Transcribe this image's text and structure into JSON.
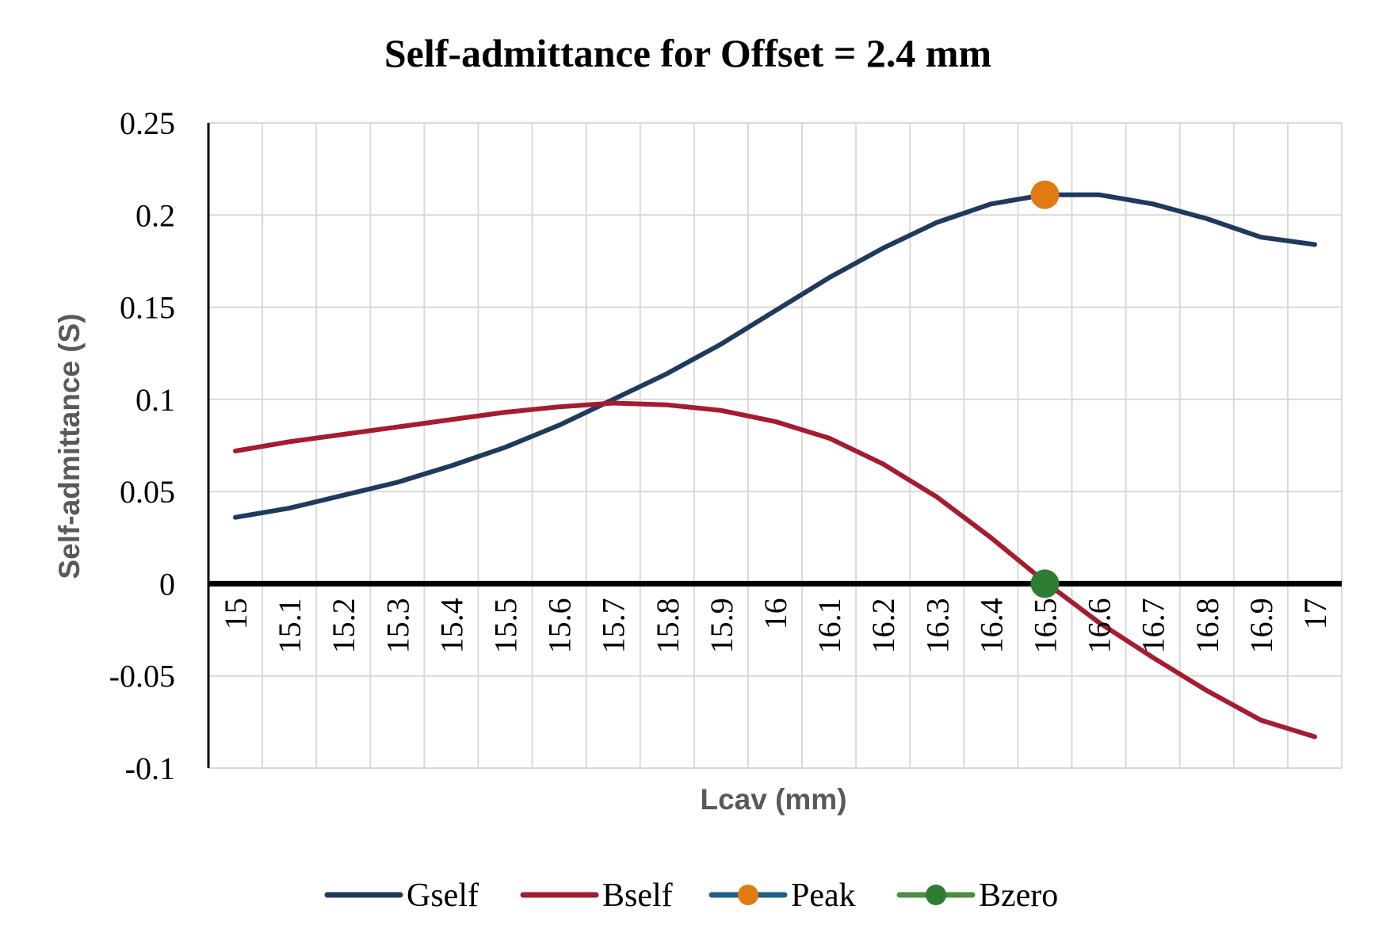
{
  "chart_data": {
    "type": "line",
    "title": "Self-admittance for Offset = 2.4 mm",
    "xlabel": "Lcav (mm)",
    "ylabel": "Self-admittance (S)",
    "categories": [
      "15",
      "15.1",
      "15.2",
      "15.3",
      "15.4",
      "15.5",
      "15.6",
      "15.7",
      "15.8",
      "15.9",
      "16",
      "16.1",
      "16.2",
      "16.3",
      "16.4",
      "16.5",
      "16.6",
      "16.7",
      "16.8",
      "16.9",
      "17"
    ],
    "ylim": [
      -0.1,
      0.25
    ],
    "yticks": [
      "0.25",
      "0.2",
      "0.15",
      "0.1",
      "0.05",
      "0",
      "-0.05",
      "-0.1"
    ],
    "grid": true,
    "legend_position": "bottom",
    "series": [
      {
        "name": "Gself",
        "color": "#1f3a5f",
        "values": [
          0.036,
          0.041,
          0.048,
          0.055,
          0.064,
          0.074,
          0.086,
          0.1,
          0.114,
          0.13,
          0.148,
          0.166,
          0.182,
          0.196,
          0.206,
          0.211,
          0.211,
          0.206,
          0.198,
          0.188,
          0.184
        ]
      },
      {
        "name": "Bself",
        "color": "#a51c30",
        "values": [
          0.072,
          0.077,
          0.081,
          0.085,
          0.089,
          0.093,
          0.096,
          0.098,
          0.097,
          0.094,
          0.088,
          0.079,
          0.065,
          0.047,
          0.025,
          0.001,
          -0.021,
          -0.04,
          -0.058,
          -0.074,
          -0.083
        ]
      }
    ],
    "markers": [
      {
        "name": "Peak",
        "x": "16.5",
        "y": 0.211,
        "color": "#e07b14",
        "line_color": "#1f5f8a"
      },
      {
        "name": "Bzero",
        "x": "16.5",
        "y": 0,
        "color": "#2e7d32",
        "line_color": "#4a8f3f"
      }
    ]
  }
}
